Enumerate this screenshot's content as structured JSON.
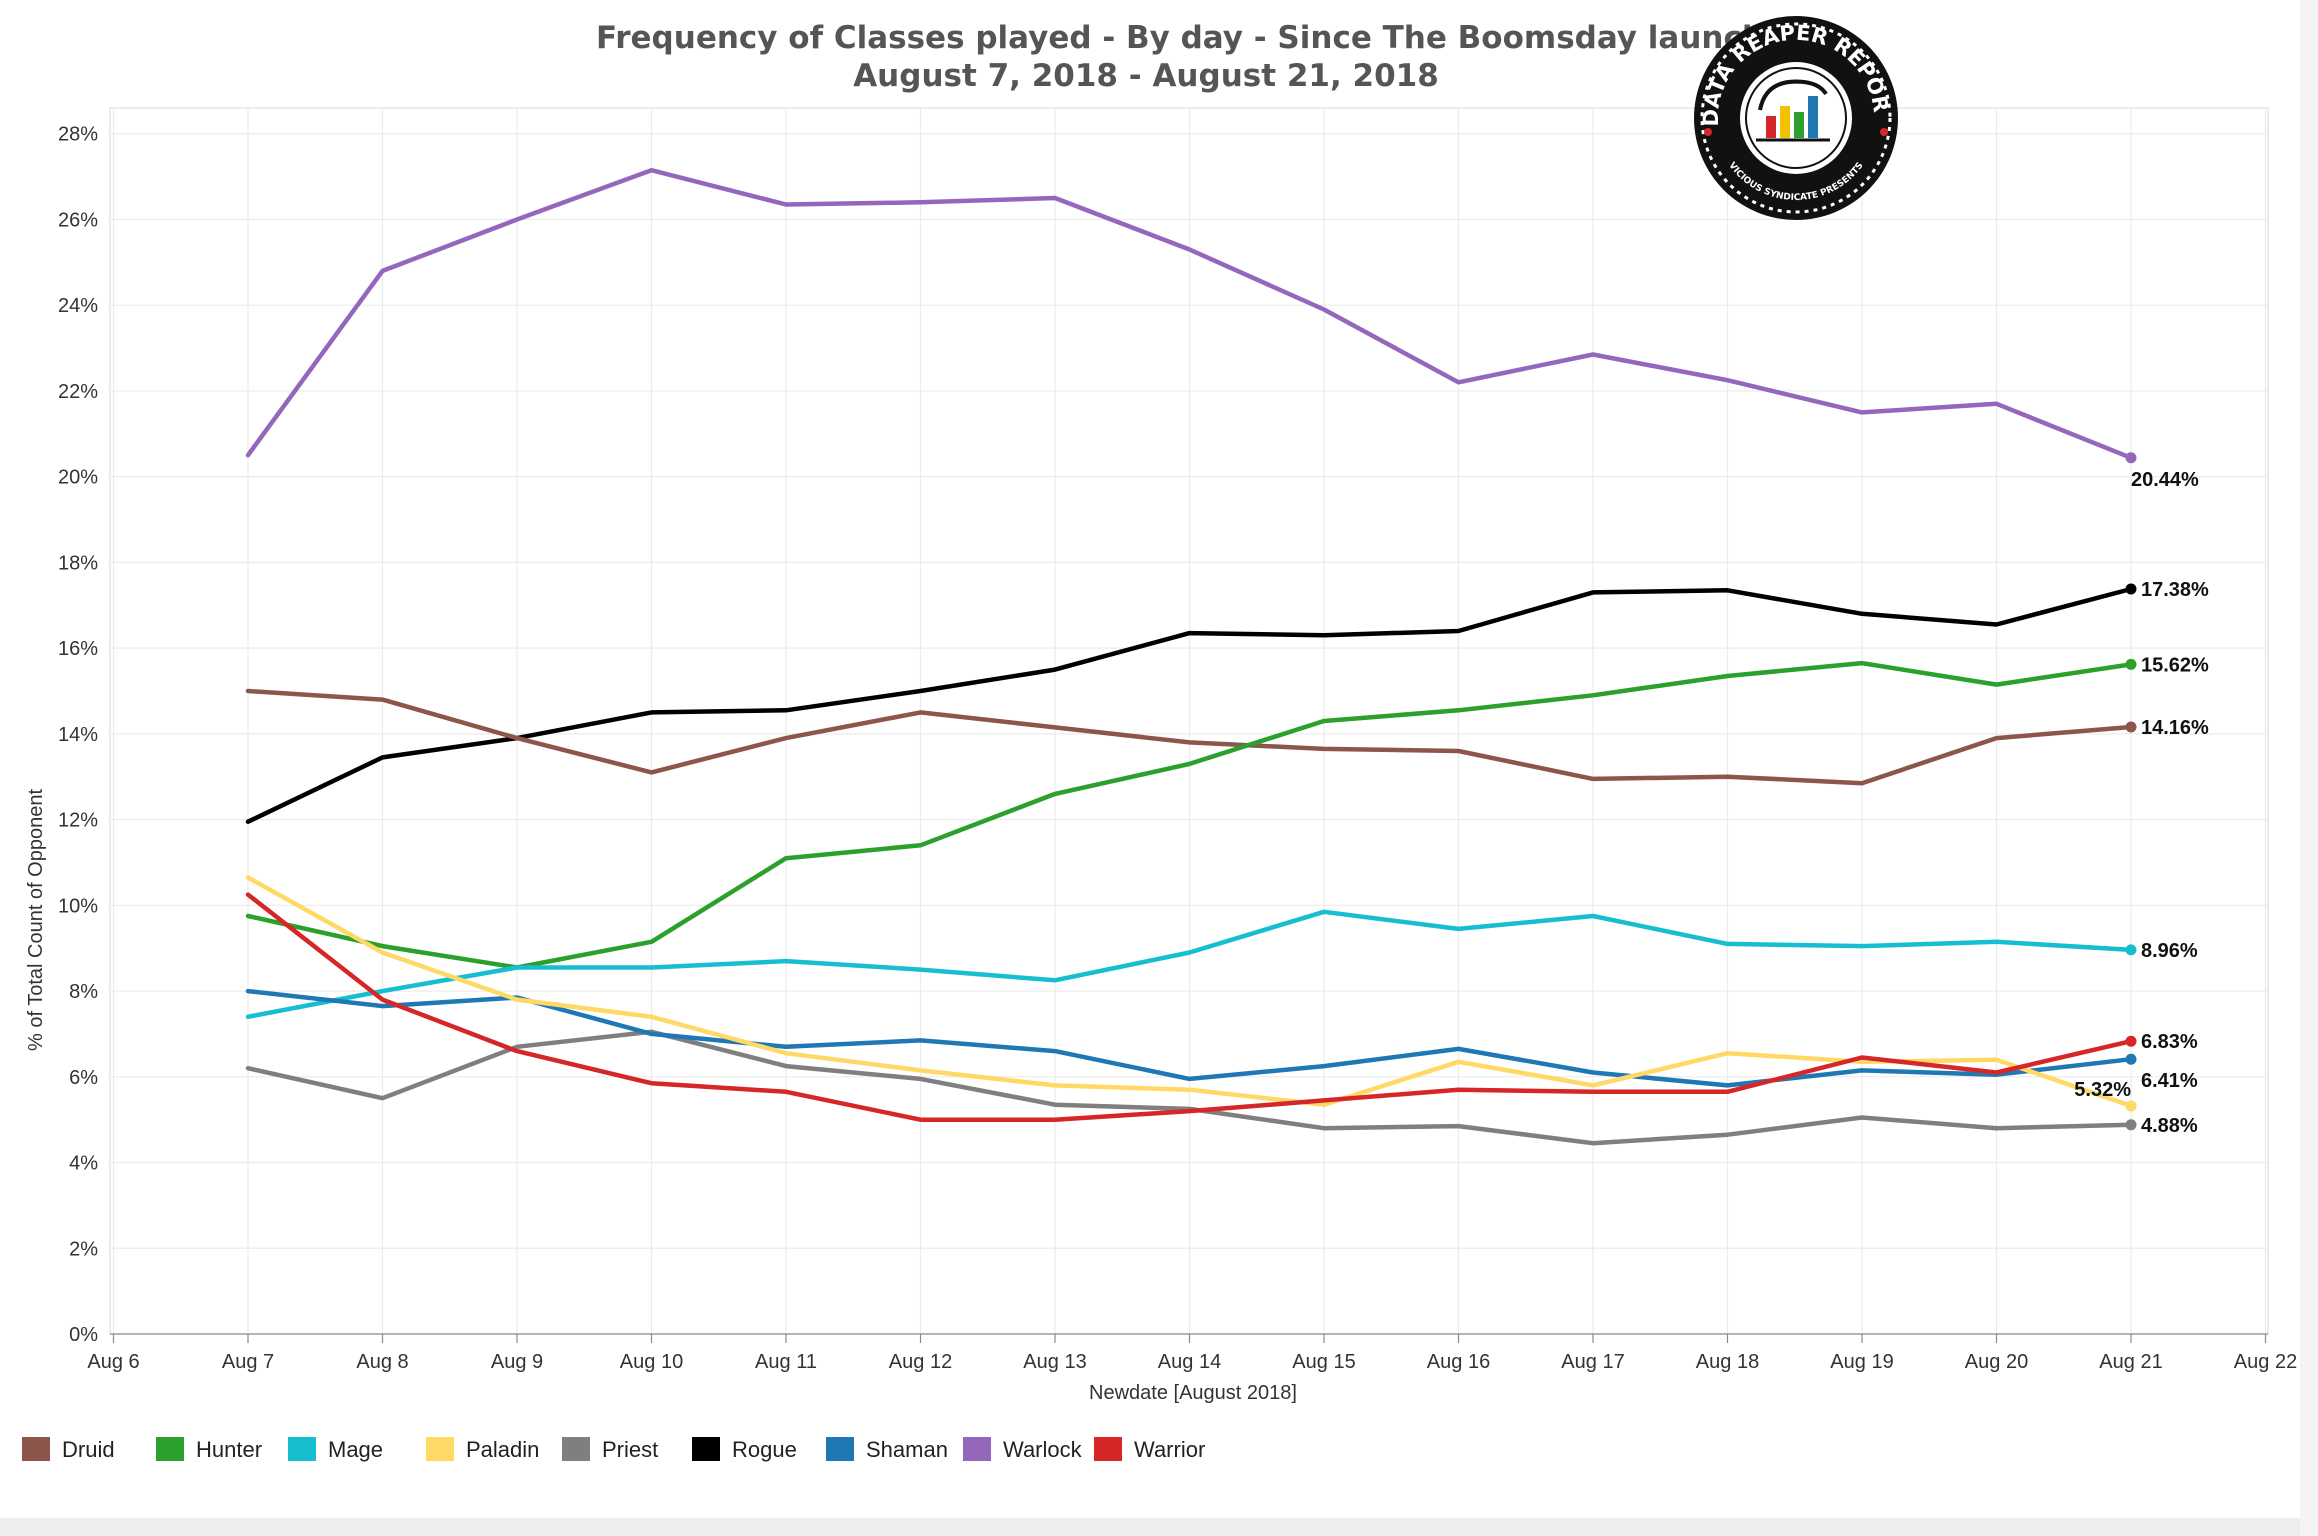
{
  "chart_data": {
    "type": "line",
    "title": "Frequency of Classes played - By day - Since The Boomsday launch",
    "subtitle": "August 7, 2018 - August 21, 2018",
    "xlabel": "Newdate [August 2018]",
    "ylabel": "% of Total Count of Opponent",
    "x_ticks": [
      "Aug 6",
      "Aug 7",
      "Aug 8",
      "Aug 9",
      "Aug 10",
      "Aug 11",
      "Aug 12",
      "Aug 13",
      "Aug 14",
      "Aug 15",
      "Aug 16",
      "Aug 17",
      "Aug 18",
      "Aug 19",
      "Aug 20",
      "Aug 21",
      "Aug 22"
    ],
    "x": [
      "Aug 7",
      "Aug 8",
      "Aug 9",
      "Aug 10",
      "Aug 11",
      "Aug 12",
      "Aug 13",
      "Aug 14",
      "Aug 15",
      "Aug 16",
      "Aug 17",
      "Aug 18",
      "Aug 19",
      "Aug 20",
      "Aug 21"
    ],
    "y_ticks": [
      "0%",
      "2%",
      "4%",
      "6%",
      "8%",
      "10%",
      "12%",
      "14%",
      "16%",
      "18%",
      "20%",
      "22%",
      "24%",
      "26%",
      "28%"
    ],
    "ylim": [
      0,
      28.6
    ],
    "grid": true,
    "legend_position": "bottom",
    "series": [
      {
        "name": "Druid",
        "color": "#8c564b",
        "end_label": "14.16%",
        "values": [
          15.0,
          14.8,
          13.9,
          13.1,
          13.9,
          14.5,
          14.15,
          13.8,
          13.65,
          13.6,
          12.95,
          13.0,
          12.85,
          13.9,
          14.16
        ]
      },
      {
        "name": "Hunter",
        "color": "#2ca02c",
        "end_label": "15.62%",
        "values": [
          9.75,
          9.05,
          8.55,
          9.15,
          11.1,
          11.4,
          12.6,
          13.3,
          14.3,
          14.55,
          14.9,
          15.35,
          15.65,
          15.15,
          15.62
        ]
      },
      {
        "name": "Mage",
        "color": "#17becf",
        "end_label": "8.96%",
        "values": [
          7.4,
          8.0,
          8.55,
          8.55,
          8.7,
          8.5,
          8.25,
          8.9,
          9.85,
          9.45,
          9.75,
          9.1,
          9.05,
          9.15,
          8.96
        ]
      },
      {
        "name": "Paladin",
        "color": "#ffd966",
        "end_label": "5.32%",
        "values": [
          10.65,
          8.9,
          7.8,
          7.4,
          6.55,
          6.15,
          5.8,
          5.7,
          5.35,
          6.35,
          5.8,
          6.55,
          6.35,
          6.4,
          5.32
        ]
      },
      {
        "name": "Priest",
        "color": "#7f7f7f",
        "end_label": "4.88%",
        "values": [
          6.2,
          5.5,
          6.7,
          7.05,
          6.25,
          5.95,
          5.35,
          5.25,
          4.8,
          4.85,
          4.45,
          4.65,
          5.05,
          4.8,
          4.88
        ]
      },
      {
        "name": "Rogue",
        "color": "#000000",
        "end_label": "17.38%",
        "values": [
          11.95,
          13.45,
          13.9,
          14.5,
          14.55,
          15.0,
          15.5,
          16.35,
          16.3,
          16.4,
          17.3,
          17.35,
          16.8,
          16.55,
          17.38
        ]
      },
      {
        "name": "Shaman",
        "color": "#1f77b4",
        "end_label": "6.41%",
        "values": [
          8.0,
          7.65,
          7.85,
          7.0,
          6.7,
          6.85,
          6.6,
          5.95,
          6.25,
          6.65,
          6.1,
          5.8,
          6.15,
          6.05,
          6.41
        ]
      },
      {
        "name": "Warlock",
        "color": "#9467bd",
        "end_label": "20.44%",
        "values": [
          20.5,
          24.8,
          26.0,
          27.15,
          26.35,
          26.4,
          26.5,
          25.3,
          23.9,
          22.2,
          22.85,
          22.25,
          21.5,
          21.7,
          20.44
        ]
      },
      {
        "name": "Warrior",
        "color": "#d62728",
        "end_label": "6.83%",
        "values": [
          10.25,
          7.8,
          6.6,
          5.85,
          5.65,
          5.0,
          5.0,
          5.2,
          5.45,
          5.7,
          5.65,
          5.65,
          6.45,
          6.1,
          6.83
        ]
      }
    ]
  },
  "logo": {
    "text_top": "DATA REAPER REPORT",
    "text_bottom": "VICIOUS SYNDICATE PRESENTS"
  }
}
